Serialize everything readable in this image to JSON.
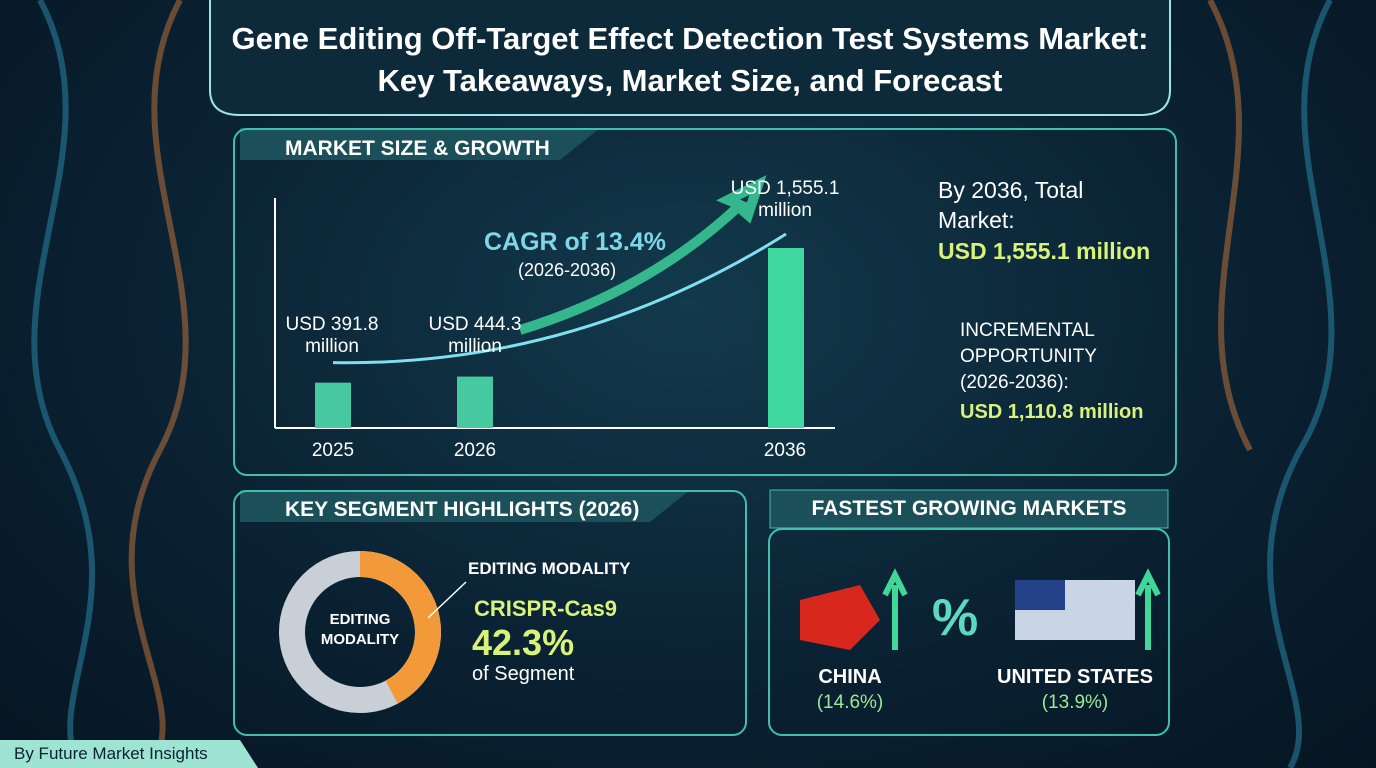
{
  "header": {
    "title": "Gene Editing Off-Target Effect Detection Test Systems Market: Key Takeaways, Market Size, and Forecast"
  },
  "market_size": {
    "heading": "MARKET SIZE & GROWTH",
    "chart": {
      "categories": [
        "2025",
        "2026",
        "2036"
      ],
      "values": [
        391.8,
        444.3,
        1555.1
      ],
      "value_labels": [
        "USD 391.8 million",
        "USD 444.3 million",
        "USD 1,555.1 million"
      ],
      "cagr": "CAGR of 13.4%",
      "cagr_period": "(2026-2036)"
    },
    "total": {
      "label": "By 2036, Total Market:",
      "value": "USD 1,555.1 million"
    },
    "incremental": {
      "label": "INCREMENTAL OPPORTUNITY (2026-2036):",
      "value": "USD 1,110.8 million"
    }
  },
  "segments": {
    "heading": "KEY SEGMENT HIGHLIGHTS (2026)",
    "donut_label": "EDITING MODALITY",
    "category": "EDITING MODALITY",
    "segment": "CRISPR-Cas9",
    "share": 42.3,
    "share_label": "42.3%",
    "share_note": "of Segment"
  },
  "fastest": {
    "heading": "FASTEST GROWING MARKETS",
    "symbol": "%",
    "markets": [
      {
        "name": "CHINA",
        "growth": "(14.6%)"
      },
      {
        "name": "UNITED STATES",
        "growth": "(13.9%)"
      }
    ]
  },
  "footer": "By Future Market Insights"
}
